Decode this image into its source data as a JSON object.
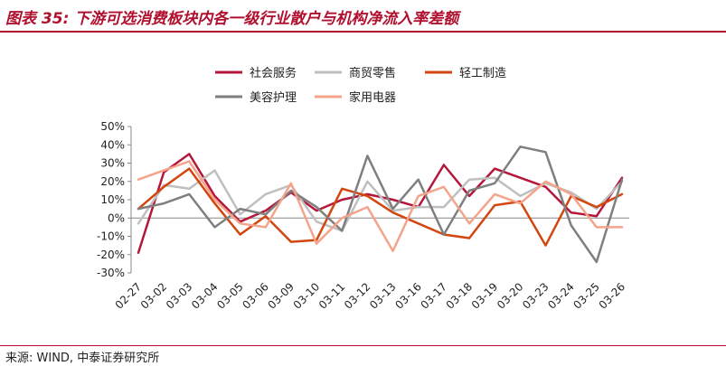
{
  "title": "图表 35: 下游可选消费板块内各一级行业散户与机构净流入率差额",
  "source": "来源: WIND, 中泰证券研究所",
  "chart_data": {
    "type": "line",
    "categories": [
      "02-27",
      "03-02",
      "03-03",
      "03-04",
      "03-05",
      "03-06",
      "03-09",
      "03-10",
      "03-11",
      "03-12",
      "03-13",
      "03-16",
      "03-17",
      "03-18",
      "03-19",
      "03-20",
      "03-23",
      "03-24",
      "03-25",
      "03-26"
    ],
    "ylim": [
      -30,
      50
    ],
    "yticks": [
      "50%",
      "40%",
      "30%",
      "20%",
      "10%",
      "0%",
      "-10%",
      "-20%",
      "-30%"
    ],
    "ytick_values": [
      50,
      40,
      30,
      20,
      10,
      0,
      -10,
      -20,
      -30
    ],
    "grid": false,
    "legend_position": "top",
    "series": [
      {
        "name": "社会服务",
        "color": "#b5173b",
        "values": [
          -19,
          25,
          35,
          12,
          -2,
          4,
          14,
          4,
          10,
          13,
          10,
          6,
          29,
          12,
          27,
          22,
          17,
          3,
          1,
          22
        ]
      },
      {
        "name": "商贸零售",
        "color": "#bfbfbf",
        "values": [
          -3,
          18,
          16,
          26,
          2,
          13,
          18,
          -2,
          -7,
          20,
          4,
          6,
          6,
          21,
          22,
          12,
          19,
          14,
          5,
          20
        ]
      },
      {
        "name": "轻工制造",
        "color": "#d2460f",
        "values": [
          5,
          17,
          27,
          8,
          -9,
          1,
          -13,
          -12,
          16,
          12,
          3,
          -3,
          -9,
          -11,
          7,
          9,
          -15,
          12,
          6,
          13
        ]
      },
      {
        "name": "美容护理",
        "color": "#7f7f7f",
        "values": [
          5,
          8,
          13,
          -5,
          5,
          2,
          15,
          6,
          -7,
          34,
          5,
          21,
          -9,
          15,
          19,
          39,
          36,
          -4,
          -24,
          21
        ]
      },
      {
        "name": "家用电器",
        "color": "#f4a48a",
        "values": [
          21,
          26,
          31,
          10,
          -3,
          -5,
          19,
          -14,
          0,
          6,
          -18,
          12,
          17,
          -3,
          13,
          8,
          20,
          13,
          -5,
          -5
        ]
      }
    ]
  }
}
